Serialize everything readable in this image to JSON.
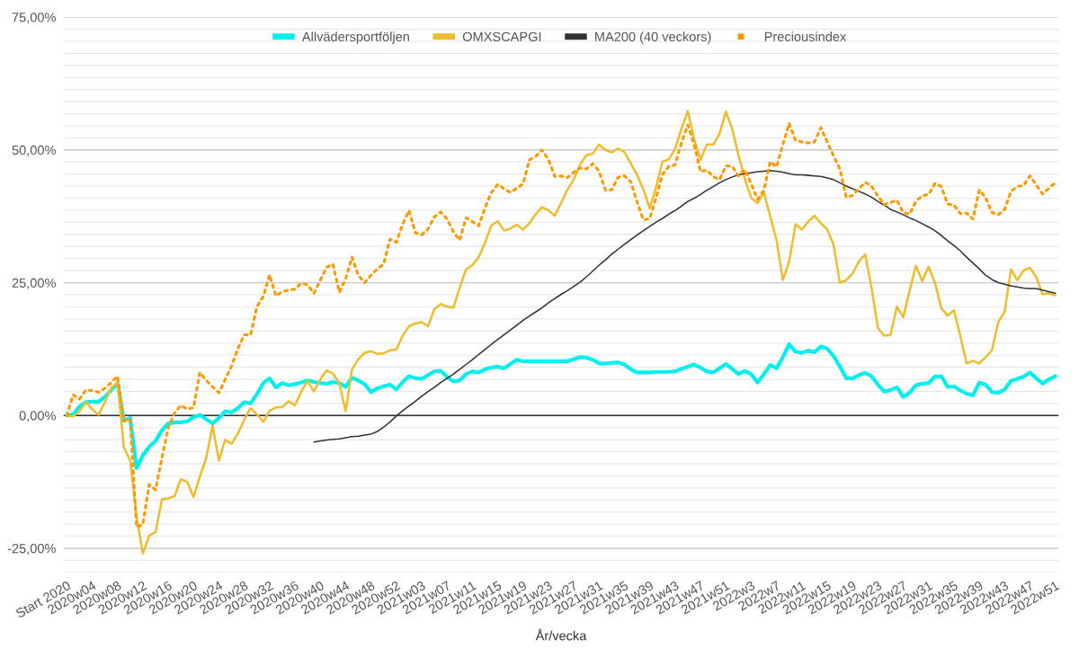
{
  "chart_data": {
    "type": "line",
    "xlabel": "År/vecka",
    "categories": [
      "Start 2020",
      null,
      null,
      null,
      "2020w04",
      null,
      null,
      null,
      "2020w08",
      null,
      null,
      null,
      "2020w12",
      null,
      null,
      null,
      "2020w16",
      null,
      null,
      null,
      "2020w20",
      null,
      null,
      null,
      "2020w24",
      null,
      null,
      null,
      "2020w28",
      null,
      null,
      null,
      "2020w32",
      null,
      null,
      null,
      "2020w36",
      null,
      null,
      null,
      "2020w40",
      null,
      null,
      null,
      "2020w44",
      null,
      null,
      null,
      "2020w48",
      null,
      null,
      null,
      "2020w52",
      null,
      null,
      null,
      "2021w03",
      null,
      null,
      null,
      "2021w07",
      null,
      null,
      null,
      "2021w11",
      null,
      null,
      null,
      "2021w15",
      null,
      null,
      null,
      "2021w19",
      null,
      null,
      null,
      "2021w23",
      null,
      null,
      null,
      "2021w27",
      null,
      null,
      null,
      "2021w31",
      null,
      null,
      null,
      "2021w35",
      null,
      null,
      null,
      "2021w39",
      null,
      null,
      null,
      "2021w43",
      null,
      null,
      null,
      "2021w47",
      null,
      null,
      null,
      "2021w51",
      null,
      null,
      null,
      "2022w3",
      null,
      null,
      null,
      "2022w7",
      null,
      null,
      null,
      "2022w11",
      null,
      null,
      null,
      "2022w15",
      null,
      null,
      null,
      "2022w19",
      null,
      null,
      null,
      "2022w23",
      null,
      null,
      null,
      "2022w27",
      null,
      null,
      null,
      "2022w31",
      null,
      null,
      null,
      "2022w35",
      null,
      null,
      null,
      "2022w39",
      null,
      null,
      null,
      "2022w43",
      null,
      null,
      null,
      "2022w47",
      null,
      null,
      null,
      "2022w51"
    ],
    "ylim": [
      -29.55,
      75
    ],
    "yticks": [
      {
        "value": -25,
        "label": "-25,00%"
      },
      {
        "value": 0,
        "label": "0,00%"
      },
      {
        "value": 25,
        "label": "25,00%"
      },
      {
        "value": 50,
        "label": "50,00%"
      },
      {
        "value": 75,
        "label": "75,00%"
      }
    ],
    "grid": "y",
    "legend": "top",
    "ref_lines": [
      {
        "axis": "y",
        "value": 0,
        "color": "#333333"
      }
    ],
    "series": [
      {
        "name": "Allvädersportföljen",
        "color": "#00f0f0",
        "line_style": "solid",
        "values": [
          0,
          0.2,
          1.7,
          2.5,
          2.6,
          2.6,
          3.5,
          4.8,
          6.1,
          -1.0,
          -0.5,
          -9.9,
          -7.5,
          -5.9,
          -4.8,
          -2.8,
          -1.5,
          -1.3,
          -1.3,
          -1.1,
          -0.3,
          0.1,
          -0.7,
          -1.5,
          -0.5,
          0.8,
          0.6,
          1.4,
          2.5,
          2.3,
          4.0,
          6.1,
          7.0,
          5.3,
          6.1,
          5.7,
          5.9,
          6.2,
          6.6,
          6.3,
          6.1,
          6.0,
          6.3,
          6.1,
          5.4,
          7.1,
          6.6,
          5.9,
          4.4,
          5.1,
          5.5,
          5.8,
          4.9,
          6.3,
          7.4,
          7.0,
          6.9,
          7.6,
          8.3,
          8.4,
          7.3,
          6.4,
          6.6,
          7.8,
          8.3,
          8.1,
          8.7,
          9.0,
          9.2,
          8.9,
          9.7,
          10.5,
          10.2,
          10.2,
          10.2,
          10.2,
          10.2,
          10.2,
          10.2,
          10.2,
          10.6,
          11.0,
          10.9,
          10.5,
          9.8,
          9.8,
          9.9,
          10.0,
          9.6,
          8.7,
          8.1,
          8.1,
          8.1,
          8.2,
          8.2,
          8.2,
          8.3,
          8.8,
          9.2,
          9.6,
          9.0,
          8.3,
          8.1,
          8.9,
          9.7,
          8.8,
          7.8,
          8.4,
          7.8,
          6.2,
          7.8,
          9.5,
          8.9,
          11.0,
          13.4,
          12.0,
          11.8,
          12.2,
          11.9,
          13.0,
          12.6,
          11.2,
          9.2,
          7.0,
          7.0,
          7.6,
          8.0,
          7.4,
          5.8,
          4.5,
          4.8,
          5.3,
          3.5,
          4.3,
          5.7,
          6.0,
          6.1,
          7.3,
          7.4,
          5.4,
          5.5,
          4.7,
          4.1,
          3.8,
          6.2,
          5.8,
          4.4,
          4.3,
          4.9,
          6.5,
          6.9,
          7.3,
          8.1,
          7.0,
          6.0,
          6.8,
          7.4
        ]
      },
      {
        "name": "OMXSCAPGI",
        "color": "#f1bc2b",
        "line_style": "solid",
        "values": [
          0,
          -0.2,
          0.8,
          2.5,
          1.2,
          0.1,
          2.5,
          5.2,
          6.2,
          -6.0,
          -8.5,
          -19.0,
          -26.0,
          -22.6,
          -22.0,
          -15.8,
          -15.6,
          -15.2,
          -12.0,
          -12.5,
          -15.4,
          -11.5,
          -8.0,
          -1.9,
          -8.5,
          -4.6,
          -5.3,
          -3.4,
          -0.8,
          1.4,
          0.2,
          -1.2,
          0.9,
          1.5,
          1.6,
          2.7,
          1.9,
          4.5,
          6.5,
          4.5,
          6.8,
          8.5,
          7.9,
          6.0,
          0.8,
          8.7,
          10.6,
          11.8,
          12.1,
          11.6,
          11.7,
          12.3,
          12.4,
          15.0,
          16.8,
          17.3,
          17.6,
          16.8,
          20.0,
          21.0,
          20.5,
          20.3,
          24.0,
          27.5,
          28.3,
          29.8,
          32.5,
          35.8,
          36.6,
          34.8,
          35.2,
          35.9,
          35.0,
          36.2,
          37.9,
          39.2,
          38.6,
          37.6,
          40.0,
          42.5,
          44.4,
          47.2,
          49.0,
          49.3,
          51.0,
          50.0,
          49.5,
          50.3,
          49.6,
          47.5,
          45.3,
          42.5,
          39.0,
          43.0,
          47.8,
          48.2,
          50.2,
          54.0,
          57.3,
          52.0,
          48.1,
          51.0,
          51.0,
          53.0,
          57.2,
          54.0,
          49.0,
          44.5,
          41.0,
          40.0,
          42.0,
          37.5,
          33.0,
          25.5,
          29.0,
          36.0,
          35.0,
          36.5,
          37.6,
          36.2,
          35.0,
          32.2,
          25.0,
          25.5,
          26.7,
          29.0,
          30.3,
          24.0,
          16.5,
          15.0,
          15.2,
          20.5,
          18.5,
          23.5,
          28.2,
          25.3,
          28.0,
          25.0,
          20.2,
          18.8,
          19.8,
          15.0,
          9.8,
          10.3,
          9.8,
          11.0,
          12.3,
          17.6,
          19.5,
          27.5,
          25.5,
          27.3,
          27.8,
          26.0,
          22.8,
          23.0,
          22.6
        ]
      },
      {
        "name": "MA200 (40 veckors)",
        "color": "#333333",
        "line_style": "solid",
        "values": [
          null,
          null,
          null,
          null,
          null,
          null,
          null,
          null,
          null,
          null,
          null,
          null,
          null,
          null,
          null,
          null,
          null,
          null,
          null,
          null,
          null,
          null,
          null,
          null,
          null,
          null,
          null,
          null,
          null,
          null,
          null,
          null,
          null,
          null,
          null,
          null,
          null,
          null,
          null,
          -5.0,
          -4.8,
          -4.6,
          -4.5,
          -4.4,
          -4.2,
          -4.0,
          -3.9,
          -3.7,
          -3.5,
          -3.0,
          -2.2,
          -1.2,
          -0.1,
          0.9,
          1.8,
          2.7,
          3.6,
          4.5,
          5.3,
          6.2,
          7.0,
          7.8,
          8.7,
          9.6,
          10.5,
          11.5,
          12.4,
          13.4,
          14.3,
          15.2,
          16.1,
          17.0,
          17.9,
          18.7,
          19.5,
          20.3,
          21.2,
          22.0,
          22.8,
          23.5,
          24.3,
          25.1,
          26.1,
          27.2,
          28.3,
          29.3,
          30.4,
          31.3,
          32.2,
          33.1,
          34.0,
          34.8,
          35.6,
          36.4,
          37.1,
          37.9,
          38.6,
          39.4,
          40.3,
          40.9,
          41.6,
          42.4,
          43.1,
          43.8,
          44.4,
          44.9,
          45.3,
          45.5,
          45.7,
          45.9,
          46.0,
          46.1,
          46.0,
          45.8,
          45.5,
          45.3,
          45.3,
          45.2,
          45.1,
          45.0,
          44.7,
          44.4,
          43.8,
          43.2,
          42.7,
          42.2,
          41.7,
          41.1,
          40.3,
          39.6,
          38.8,
          38.3,
          37.8,
          37.2,
          36.7,
          36.1,
          35.5,
          34.8,
          33.9,
          32.9,
          32.0,
          31.0,
          29.8,
          28.7,
          27.6,
          26.4,
          25.6,
          25.0,
          24.7,
          24.4,
          24.2,
          24.0,
          23.9,
          23.9,
          23.6,
          23.3,
          23.0
        ]
      },
      {
        "name": "Preciousindex",
        "color": "#ff9900",
        "line_style": "dotted",
        "values": [
          0,
          3.9,
          3.1,
          4.8,
          4.7,
          4.4,
          5.1,
          6.2,
          7.4,
          -1.0,
          -0.6,
          -21.0,
          -20.5,
          -13.0,
          -14.0,
          -8.0,
          -2.3,
          0.5,
          1.9,
          1.2,
          1.5,
          8.1,
          6.6,
          5.4,
          4.3,
          6.8,
          9.3,
          12.6,
          15.2,
          15.2,
          20.5,
          22.4,
          26.5,
          22.5,
          23.3,
          23.6,
          23.8,
          24.9,
          24.6,
          23.0,
          25.5,
          27.9,
          28.5,
          23.2,
          25.7,
          29.8,
          26.4,
          25.0,
          26.4,
          27.6,
          28.5,
          33.2,
          32.6,
          36.0,
          38.6,
          34.4,
          34.0,
          35.1,
          37.4,
          38.3,
          37.0,
          34.6,
          33.0,
          37.2,
          36.5,
          35.7,
          39.1,
          42.0,
          43.5,
          42.7,
          42.0,
          42.8,
          43.6,
          48.1,
          48.8,
          50.0,
          48.2,
          45.0,
          45.1,
          44.8,
          45.8,
          46.6,
          46.4,
          47.4,
          46.0,
          42.4,
          42.5,
          44.9,
          45.1,
          44.0,
          40.2,
          36.8,
          37.1,
          41.0,
          45.4,
          46.9,
          47.2,
          51.3,
          54.7,
          51.0,
          45.9,
          46.2,
          45.0,
          44.4,
          47.0,
          46.9,
          45.1,
          46.3,
          43.6,
          40.7,
          42.4,
          47.8,
          46.8,
          51.0,
          55.0,
          51.8,
          51.5,
          51.3,
          51.5,
          54.2,
          51.5,
          48.9,
          46.4,
          41.1,
          41.4,
          42.7,
          43.9,
          43.2,
          41.3,
          39.7,
          40.1,
          40.5,
          38.2,
          37.9,
          40.3,
          41.4,
          41.6,
          43.7,
          43.1,
          39.8,
          39.6,
          38.0,
          38.1,
          37.0,
          42.5,
          41.0,
          38.2,
          37.8,
          38.8,
          42.2,
          43.1,
          43.3,
          45.1,
          43.4,
          41.7,
          42.8,
          43.9
        ]
      }
    ]
  }
}
